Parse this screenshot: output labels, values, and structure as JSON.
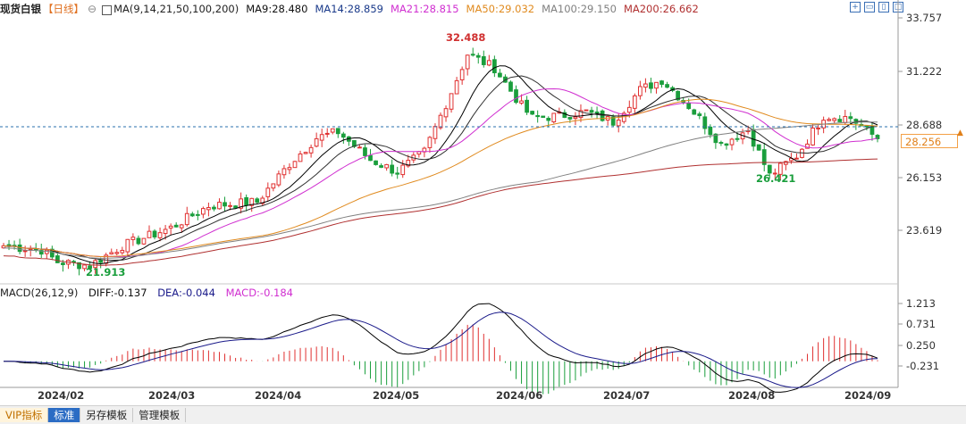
{
  "legend": {
    "symbol": "现货白银",
    "period": "【日线】",
    "ctrl_icon": "⊖",
    "ma_icon": "square-icon",
    "ma_label": "MA(9,14,21,50,100,200)",
    "ma9": "MA9:28.480",
    "ma14": "MA14:28.859",
    "ma21": "MA21:28.815",
    "ma50": "MA50:29.032",
    "ma100": "MA100:29.150",
    "ma200": "MA200:26.662"
  },
  "macd_legend": {
    "label": "MACD(26,12,9)",
    "diff": "DIFF:-0.137",
    "dea": "DEA:-0.044",
    "macd": "MACD:-0.184"
  },
  "toolbar_icons": [
    "move-icon",
    "zoom-in-icon",
    "zoom-out-icon",
    "fullscreen-icon"
  ],
  "price_axis": [
    "33.757",
    "31.222",
    "28.688",
    "26.153",
    "23.619"
  ],
  "macd_axis": [
    "1.213",
    "0.731",
    "0.250",
    "-0.231"
  ],
  "current_price": "28.256",
  "highlights": {
    "high": "32.488",
    "low_left": "21.913",
    "low_right": "26.421"
  },
  "x_axis": [
    "2024/02",
    "2024/03",
    "2024/04",
    "2024/05",
    "2024/06",
    "2024/07",
    "2024/08",
    "2024/09"
  ],
  "bottom_tabs": [
    "VIP指标",
    "标准",
    "另存模板",
    "管理模板"
  ],
  "colors": {
    "up": "#e03030",
    "down": "#1a9e3c",
    "ma9": "#000000",
    "ma14": "#303030",
    "ma21": "#d02fd0",
    "ma50": "#e08a1e",
    "ma100": "#808080",
    "ma200": "#b03030",
    "dea": "#1a1a8a"
  },
  "chart_data": {
    "type": "candlestick",
    "y_range": [
      21.0,
      34.3
    ],
    "anchors": [
      {
        "date": "2024-01-22",
        "close": 22.9
      },
      {
        "date": "2024-02-01",
        "close": 22.7
      },
      {
        "date": "2024-02-05",
        "close": 22.1
      },
      {
        "date": "2024-02-13",
        "close": 21.913
      },
      {
        "date": "2024-02-22",
        "close": 22.9
      },
      {
        "date": "2024-03-05",
        "close": 23.8
      },
      {
        "date": "2024-03-15",
        "close": 24.9
      },
      {
        "date": "2024-03-28",
        "close": 25.1
      },
      {
        "date": "2024-04-05",
        "close": 27.0
      },
      {
        "date": "2024-04-12",
        "close": 28.3
      },
      {
        "date": "2024-04-18",
        "close": 28.6
      },
      {
        "date": "2024-04-26",
        "close": 27.2
      },
      {
        "date": "2024-05-03",
        "close": 26.6
      },
      {
        "date": "2024-05-10",
        "close": 27.6
      },
      {
        "date": "2024-05-17",
        "close": 30.6
      },
      {
        "date": "2024-05-21",
        "close": 32.488
      },
      {
        "date": "2024-05-28",
        "close": 31.8
      },
      {
        "date": "2024-06-04",
        "close": 29.9
      },
      {
        "date": "2024-06-07",
        "close": 29.3
      },
      {
        "date": "2024-06-14",
        "close": 29.4
      },
      {
        "date": "2024-06-21",
        "close": 29.6
      },
      {
        "date": "2024-06-28",
        "close": 29.1
      },
      {
        "date": "2024-07-05",
        "close": 30.7
      },
      {
        "date": "2024-07-11",
        "close": 31.2
      },
      {
        "date": "2024-07-18",
        "close": 29.9
      },
      {
        "date": "2024-07-26",
        "close": 28.0
      },
      {
        "date": "2024-08-02",
        "close": 28.7
      },
      {
        "date": "2024-08-07",
        "close": 26.421
      },
      {
        "date": "2024-08-14",
        "close": 27.4
      },
      {
        "date": "2024-08-21",
        "close": 29.4
      },
      {
        "date": "2024-08-28",
        "close": 29.3
      },
      {
        "date": "2024-09-04",
        "close": 28.256
      }
    ]
  }
}
